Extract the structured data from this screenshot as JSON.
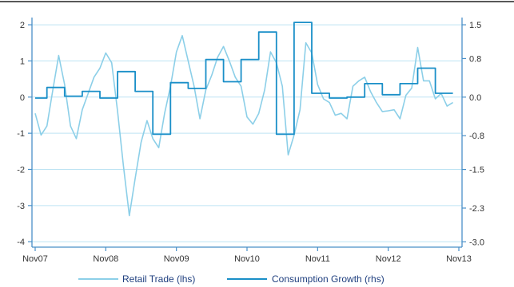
{
  "chart_data": {
    "type": "line",
    "title": "",
    "xlabel": "",
    "ylabel_left": "",
    "ylabel_right": "",
    "x_ticks": [
      "Nov07",
      "Nov08",
      "Nov09",
      "Nov10",
      "Nov11",
      "Nov12",
      "Nov13"
    ],
    "y_left": {
      "ticks": [
        "-4",
        "-3",
        "-2",
        "-1",
        "0",
        "1",
        "2"
      ],
      "ylim": [
        -4.15,
        2.2
      ],
      "scale": "linear"
    },
    "y_right": {
      "ticks": [
        "-3.0",
        "-2.3",
        "-1.5",
        "-0.8",
        "0.0",
        "0.8",
        "1.5"
      ],
      "ylim": [
        -3.11,
        1.65
      ],
      "scale": "linear"
    },
    "grid": {
      "horizontal": true,
      "vertical": false
    },
    "legend_position": "bottom",
    "colors": {
      "retail": "#8ccfe8",
      "consumption": "#1a8fc8",
      "axis": "#4a90c8",
      "grid": "#bde3f3",
      "legend_text": "#1f3f7f"
    },
    "series": [
      {
        "name": "Retail Trade (lhs)",
        "axis": "left",
        "style": "line",
        "x": [
          0,
          1,
          2,
          3,
          4,
          5,
          6,
          7,
          8,
          9,
          10,
          11,
          12,
          13,
          14,
          15,
          16,
          17,
          18,
          19,
          20,
          21,
          22,
          23,
          24,
          25,
          26,
          27,
          28,
          29,
          30,
          31,
          32,
          33,
          34,
          35,
          36,
          37,
          38,
          39,
          40,
          41,
          42,
          43,
          44,
          45,
          46,
          47,
          48,
          49,
          50,
          51,
          52,
          53,
          54,
          55,
          56,
          57,
          58,
          59,
          60,
          61,
          62,
          63,
          64,
          65,
          66,
          67,
          68,
          69,
          70,
          71
        ],
        "y": [
          -0.45,
          -1.05,
          -0.8,
          0.2,
          1.15,
          0.35,
          -0.8,
          -1.15,
          -0.35,
          0.1,
          0.55,
          0.8,
          1.22,
          0.95,
          -0.4,
          -1.9,
          -3.28,
          -2.25,
          -1.25,
          -0.65,
          -1.15,
          -1.4,
          -0.45,
          0.3,
          1.25,
          1.7,
          1.0,
          0.3,
          -0.6,
          0.2,
          0.6,
          1.1,
          1.4,
          1.0,
          0.55,
          0.3,
          -0.55,
          -0.75,
          -0.45,
          0.2,
          1.25,
          0.95,
          0.3,
          -1.6,
          -1.05,
          -0.35,
          1.5,
          1.22,
          0.35,
          -0.05,
          -0.15,
          -0.5,
          -0.45,
          -0.6,
          0.3,
          0.45,
          0.55,
          0.15,
          -0.15,
          -0.4,
          -0.38,
          -0.35,
          -0.6,
          0.05,
          0.25,
          1.37,
          0.45,
          0.45,
          -0.05,
          0.1,
          -0.25,
          -0.15
        ]
      },
      {
        "name": "Consumption Growth (rhs)",
        "axis": "right",
        "style": "step",
        "x": [
          0,
          1,
          2,
          3,
          4,
          5,
          6,
          7,
          8,
          9,
          10,
          11,
          12,
          13,
          14,
          15,
          16,
          17,
          18,
          19,
          20,
          21,
          22,
          23,
          24,
          25,
          26,
          27,
          28,
          29,
          30,
          31,
          32,
          33,
          34,
          35,
          36,
          37,
          38,
          39,
          40,
          41,
          42,
          43,
          44,
          45,
          46,
          47,
          48,
          49,
          50,
          51,
          52,
          53,
          54,
          55,
          56,
          57,
          58,
          59,
          60,
          61,
          62,
          63,
          64,
          65,
          66,
          67,
          68,
          69,
          70,
          71
        ],
        "y": [
          -0.02,
          -0.02,
          0.2,
          0.2,
          0.2,
          0.02,
          0.02,
          0.02,
          0.12,
          0.12,
          0.12,
          -0.02,
          -0.02,
          -0.02,
          0.53,
          0.53,
          0.53,
          0.12,
          0.12,
          0.12,
          -0.77,
          -0.77,
          -0.77,
          0.3,
          0.3,
          0.3,
          0.18,
          0.18,
          0.18,
          0.78,
          0.78,
          0.78,
          0.32,
          0.32,
          0.32,
          0.78,
          0.78,
          0.78,
          1.35,
          1.35,
          1.35,
          -0.77,
          -0.77,
          -0.77,
          1.55,
          1.55,
          1.55,
          0.08,
          0.08,
          0.08,
          -0.02,
          -0.02,
          -0.02,
          0.0,
          0.0,
          0.0,
          0.28,
          0.28,
          0.28,
          0.05,
          0.05,
          0.05,
          0.28,
          0.28,
          0.28,
          0.6,
          0.6,
          0.6,
          0.08,
          0.08,
          0.08,
          0.08
        ]
      }
    ]
  }
}
